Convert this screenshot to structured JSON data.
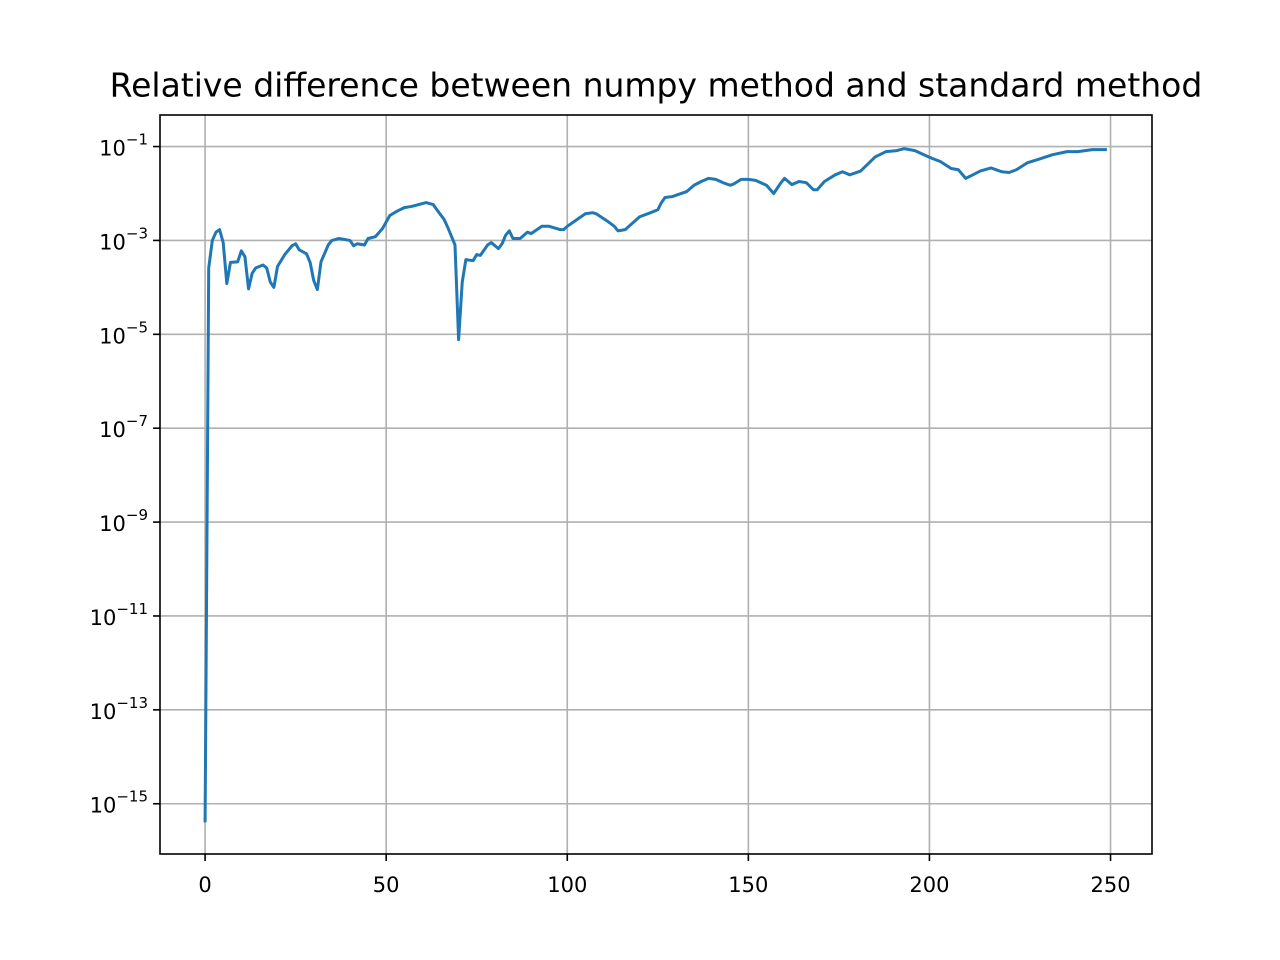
{
  "chart_data": {
    "type": "line",
    "title": "Relative difference between numpy method and standard method",
    "x": [
      0,
      1,
      2,
      3,
      4,
      5,
      6,
      7,
      9,
      10,
      11,
      12,
      13,
      14,
      16,
      17,
      18,
      19,
      20,
      22,
      24,
      25,
      26,
      28,
      29,
      30,
      31,
      32,
      34,
      35,
      37,
      40,
      41,
      42,
      44,
      45,
      47,
      49,
      51,
      53,
      55,
      57,
      59,
      61,
      63,
      64,
      66,
      67,
      69,
      70,
      71,
      72,
      74,
      75,
      76,
      78,
      79,
      81,
      82,
      83,
      84,
      85,
      87,
      89,
      90,
      93,
      95,
      98,
      99,
      100,
      103,
      105,
      107,
      108,
      111,
      113,
      114,
      116,
      120,
      123,
      125,
      126,
      127,
      129,
      133,
      135,
      137,
      139,
      141,
      143,
      145,
      146,
      148,
      150,
      152,
      155,
      157,
      159,
      160,
      162,
      164,
      166,
      168,
      169,
      171,
      174,
      176,
      178,
      181,
      185,
      188,
      191,
      193,
      196,
      199,
      201,
      203,
      206,
      208,
      210,
      212,
      214,
      217,
      220,
      222,
      224,
      227,
      230,
      234,
      238,
      241,
      245,
      249
    ],
    "series": [
      {
        "color": "#1f77b4",
        "values": [
          4e-16,
          0.00026,
          0.001,
          0.0015,
          0.0017,
          0.0009,
          0.00012,
          0.00034,
          0.00035,
          0.0006,
          0.00045,
          9.3e-05,
          0.0002,
          0.00026,
          0.0003,
          0.00026,
          0.00013,
          0.0001,
          0.00028,
          0.0005,
          0.00077,
          0.00085,
          0.00063,
          0.00052,
          0.00034,
          0.00014,
          9e-05,
          0.00035,
          0.0008,
          0.001,
          0.0011,
          0.001,
          0.00077,
          0.00085,
          0.0008,
          0.0011,
          0.0012,
          0.0018,
          0.0034,
          0.0042,
          0.005,
          0.0053,
          0.0058,
          0.0064,
          0.0058,
          0.0045,
          0.0028,
          0.0019,
          0.0008,
          7.7e-06,
          0.00013,
          0.00039,
          0.00037,
          0.0005,
          0.00048,
          0.0008,
          0.0009,
          0.00067,
          0.00085,
          0.0013,
          0.0016,
          0.0011,
          0.0011,
          0.0015,
          0.0014,
          0.002,
          0.002,
          0.0017,
          0.0017,
          0.002,
          0.0029,
          0.0037,
          0.0039,
          0.0037,
          0.0026,
          0.002,
          0.0016,
          0.0017,
          0.0032,
          0.0039,
          0.0045,
          0.0064,
          0.0082,
          0.0086,
          0.011,
          0.015,
          0.018,
          0.021,
          0.02,
          0.017,
          0.015,
          0.016,
          0.02,
          0.02,
          0.019,
          0.015,
          0.01,
          0.017,
          0.021,
          0.0155,
          0.018,
          0.017,
          0.012,
          0.012,
          0.018,
          0.025,
          0.029,
          0.025,
          0.03,
          0.06,
          0.078,
          0.082,
          0.09,
          0.082,
          0.064,
          0.055,
          0.048,
          0.034,
          0.032,
          0.021,
          0.025,
          0.03,
          0.035,
          0.029,
          0.028,
          0.032,
          0.045,
          0.053,
          0.067,
          0.078,
          0.078,
          0.086,
          0.086
        ]
      }
    ],
    "xlim": [
      -12.45,
      261.45
    ],
    "xticks": [
      0,
      50,
      100,
      150,
      200,
      250
    ],
    "ylim": [
      8.5e-17,
      0.47
    ],
    "log_y": true,
    "yticks": [
      {
        "value": 1e-15,
        "label": "10^−15"
      },
      {
        "value": 1e-13,
        "label": "10^−13"
      },
      {
        "value": 1e-11,
        "label": "10^−11"
      },
      {
        "value": 1e-09,
        "label": "10^−9"
      },
      {
        "value": 1e-07,
        "label": "10^−7"
      },
      {
        "value": 1e-05,
        "label": "10^−5"
      },
      {
        "value": 0.001,
        "label": "10^−3"
      },
      {
        "value": 0.1,
        "label": "10^−1"
      }
    ],
    "grid": true
  }
}
